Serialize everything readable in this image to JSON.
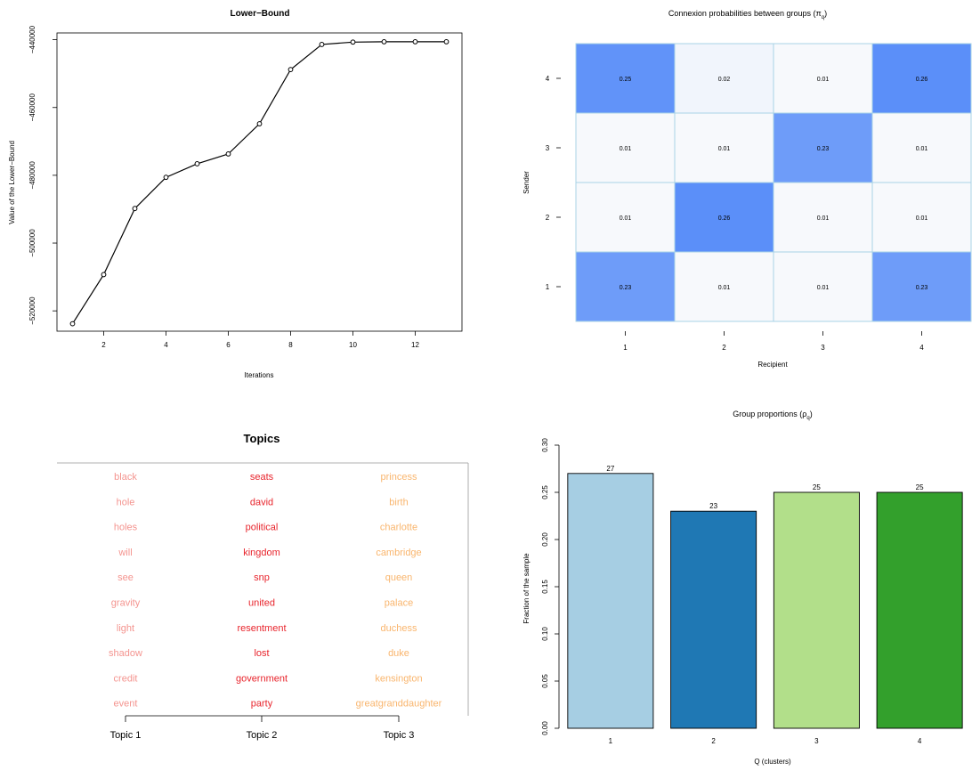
{
  "chart_data": [
    {
      "type": "line",
      "title": "Lower−Bound",
      "xlabel": "Iterations",
      "ylabel": "Value of the Lower−Bound",
      "x": [
        1,
        2,
        3,
        4,
        5,
        6,
        7,
        8,
        9,
        10,
        11,
        12,
        13
      ],
      "y": [
        -523800,
        -509300,
        -489800,
        -480600,
        -476600,
        -473700,
        -464800,
        -448800,
        -441400,
        -440700,
        -440600,
        -440600,
        -440600
      ],
      "xticks": [
        "2",
        "4",
        "6",
        "8",
        "10",
        "12"
      ],
      "yticks": [
        "−520000",
        "−500000",
        "−480000",
        "−460000",
        "−440000"
      ],
      "xlim": [
        0.5,
        13.5
      ],
      "ylim": [
        -526000,
        -438000
      ],
      "markers": "open-circle"
    },
    {
      "type": "heatmap",
      "title": "Connexion probabilities between groups (π",
      "title_sub": "q",
      "title_end": ")",
      "xlabel": "Recipient",
      "ylabel": "Sender",
      "x_categories": [
        "1",
        "2",
        "3",
        "4"
      ],
      "y_categories": [
        "1",
        "2",
        "3",
        "4"
      ],
      "rows": [
        {
          "sender": "4",
          "values": [
            "0.25",
            "0.02",
            "0.01",
            "0.26"
          ]
        },
        {
          "sender": "3",
          "values": [
            "0.01",
            "0.01",
            "0.23",
            "0.01"
          ]
        },
        {
          "sender": "2",
          "values": [
            "0.01",
            "0.26",
            "0.01",
            "0.01"
          ]
        },
        {
          "sender": "1",
          "values": [
            "0.23",
            "0.01",
            "0.01",
            "0.23"
          ]
        }
      ],
      "color_low": "#f7f9fc",
      "color_high": "#5b8ff9",
      "grid_color": "#a9d3e6"
    },
    {
      "type": "table",
      "title": "Topics",
      "columns": [
        {
          "label": "Topic 1",
          "color": "#f4948f",
          "words": [
            "black",
            "hole",
            "holes",
            "will",
            "see",
            "gravity",
            "light",
            "shadow",
            "credit",
            "event"
          ]
        },
        {
          "label": "Topic 2",
          "color": "#e8242c",
          "words": [
            "seats",
            "david",
            "political",
            "kingdom",
            "snp",
            "united",
            "resentment",
            "lost",
            "government",
            "party"
          ]
        },
        {
          "label": "Topic 3",
          "color": "#f9b56d",
          "words": [
            "princess",
            "birth",
            "charlotte",
            "cambridge",
            "queen",
            "palace",
            "duchess",
            "duke",
            "kensington",
            "greatgranddaughter"
          ]
        }
      ]
    },
    {
      "type": "bar",
      "title": "Group proportions (ρ",
      "title_sub": "q",
      "title_end": ")",
      "xlabel": "Q (clusters)",
      "ylabel": "Fraction of the sample",
      "categories": [
        "1",
        "2",
        "3",
        "4"
      ],
      "values": [
        0.27,
        0.23,
        0.25,
        0.25
      ],
      "labels": [
        "27",
        "23",
        "25",
        "25"
      ],
      "colors": [
        "#a6cee3",
        "#1f78b4",
        "#b2df8a",
        "#33a02c"
      ],
      "yticks": [
        "0.00",
        "0.05",
        "0.10",
        "0.15",
        "0.20",
        "0.25",
        "0.30"
      ],
      "ylim": [
        0,
        0.3
      ]
    }
  ]
}
